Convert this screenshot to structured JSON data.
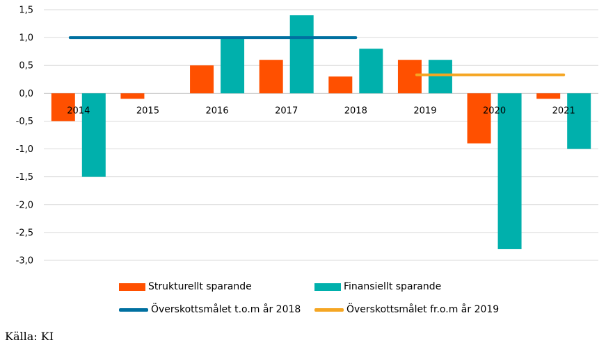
{
  "chart_data": {
    "type": "bar",
    "title": "",
    "xlabel": "",
    "ylabel": "",
    "categories": [
      "2014",
      "2015",
      "2016",
      "2017",
      "2018",
      "2019",
      "2020",
      "2021"
    ],
    "ylim": [
      -3.0,
      1.5
    ],
    "yticks": [
      1.5,
      1.0,
      0.5,
      0.0,
      -0.5,
      -1.0,
      -1.5,
      -2.0,
      -2.5,
      -3.0
    ],
    "ytick_labels": [
      "1,5",
      "1,0",
      "0,5",
      "0,0",
      "-0,5",
      "-1,0",
      "-1,5",
      "-2,0",
      "-2,5",
      "-3,0"
    ],
    "grid": true,
    "legend_position": "bottom",
    "series": [
      {
        "name": "Strukturellt sparande",
        "type": "bar",
        "color": "#ff5000",
        "values": [
          -0.5,
          -0.1,
          0.5,
          0.6,
          0.3,
          0.6,
          -0.9,
          -0.1
        ]
      },
      {
        "name": "Finansiellt sparande",
        "type": "bar",
        "color": "#00b0ac",
        "values": [
          -1.5,
          0.0,
          1.0,
          1.4,
          0.8,
          0.6,
          -2.8,
          -1.0
        ]
      },
      {
        "name": "Överskottsmålet t.o.m år 2018",
        "type": "line",
        "color": "#0070a0",
        "value": 1.0,
        "from": "2014",
        "to": "2018"
      },
      {
        "name": "Överskottsmålet fr.o.m år 2019",
        "type": "line",
        "color": "#f5a623",
        "value": 0.33,
        "from": "2019",
        "to": "2021"
      }
    ]
  },
  "source_text": "Källa: KI"
}
